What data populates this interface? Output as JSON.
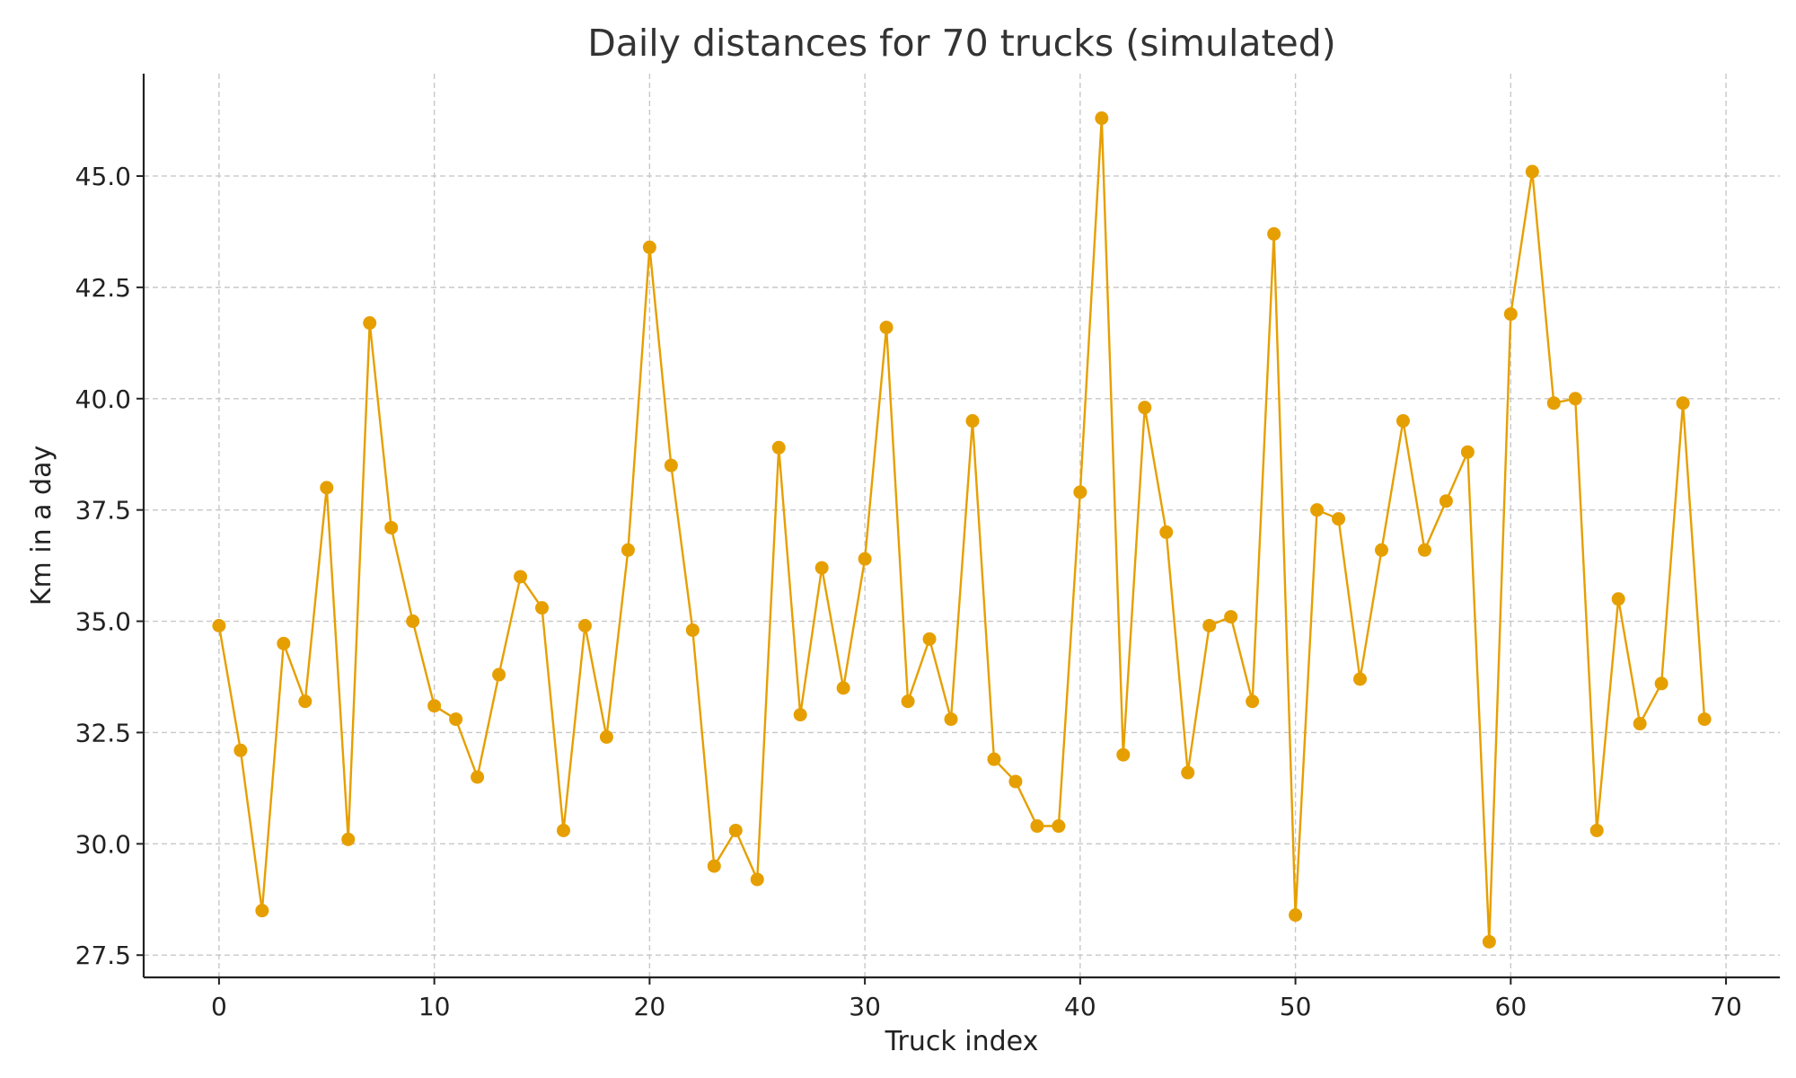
{
  "chart_data": {
    "type": "line",
    "title": "Daily distances for 70 trucks (simulated)",
    "xlabel": "Truck index",
    "ylabel": "Km in a day",
    "xlim": [
      -3.5,
      72.5
    ],
    "ylim": [
      27.0,
      47.3
    ],
    "xticks": [
      0,
      10,
      20,
      30,
      40,
      50,
      60,
      70
    ],
    "yticks": [
      27.5,
      30.0,
      32.5,
      35.0,
      37.5,
      40.0,
      42.5,
      45.0
    ],
    "grid": true,
    "colors": {
      "line": "#E69F00",
      "marker": "#E69F00"
    },
    "series": [
      {
        "x": [
          0,
          1,
          2,
          3,
          4,
          5,
          6,
          7,
          8,
          9,
          10,
          11,
          12,
          13,
          14,
          15,
          16,
          17,
          18,
          19,
          20,
          21,
          22,
          23,
          24,
          25,
          26,
          27,
          28,
          29,
          30,
          31,
          32,
          33,
          34,
          35,
          36,
          37,
          38,
          39,
          40,
          41,
          42,
          43,
          44,
          45,
          46,
          47,
          48,
          49,
          50,
          51,
          52,
          53,
          54,
          55,
          56,
          57,
          58,
          59,
          60,
          61,
          62,
          63,
          64,
          65,
          66,
          67,
          68,
          69
        ],
        "values": [
          34.9,
          32.1,
          28.5,
          34.5,
          33.2,
          38.0,
          30.1,
          41.7,
          37.1,
          35.0,
          33.1,
          32.8,
          31.5,
          33.8,
          36.0,
          35.3,
          30.3,
          34.9,
          32.4,
          36.6,
          43.4,
          38.5,
          34.8,
          29.5,
          30.3,
          29.2,
          38.9,
          32.9,
          36.2,
          33.5,
          36.4,
          41.6,
          33.2,
          34.6,
          32.8,
          39.5,
          31.9,
          31.4,
          30.4,
          30.4,
          37.9,
          46.3,
          32.0,
          39.8,
          37.0,
          31.6,
          34.9,
          35.1,
          33.2,
          43.7,
          28.4,
          37.5,
          37.3,
          33.7,
          36.6,
          39.5,
          36.6,
          37.7,
          38.8,
          27.8,
          41.9,
          45.1,
          39.9,
          40.0,
          30.3,
          35.5,
          32.7,
          33.6,
          39.9,
          32.8
        ]
      }
    ]
  }
}
